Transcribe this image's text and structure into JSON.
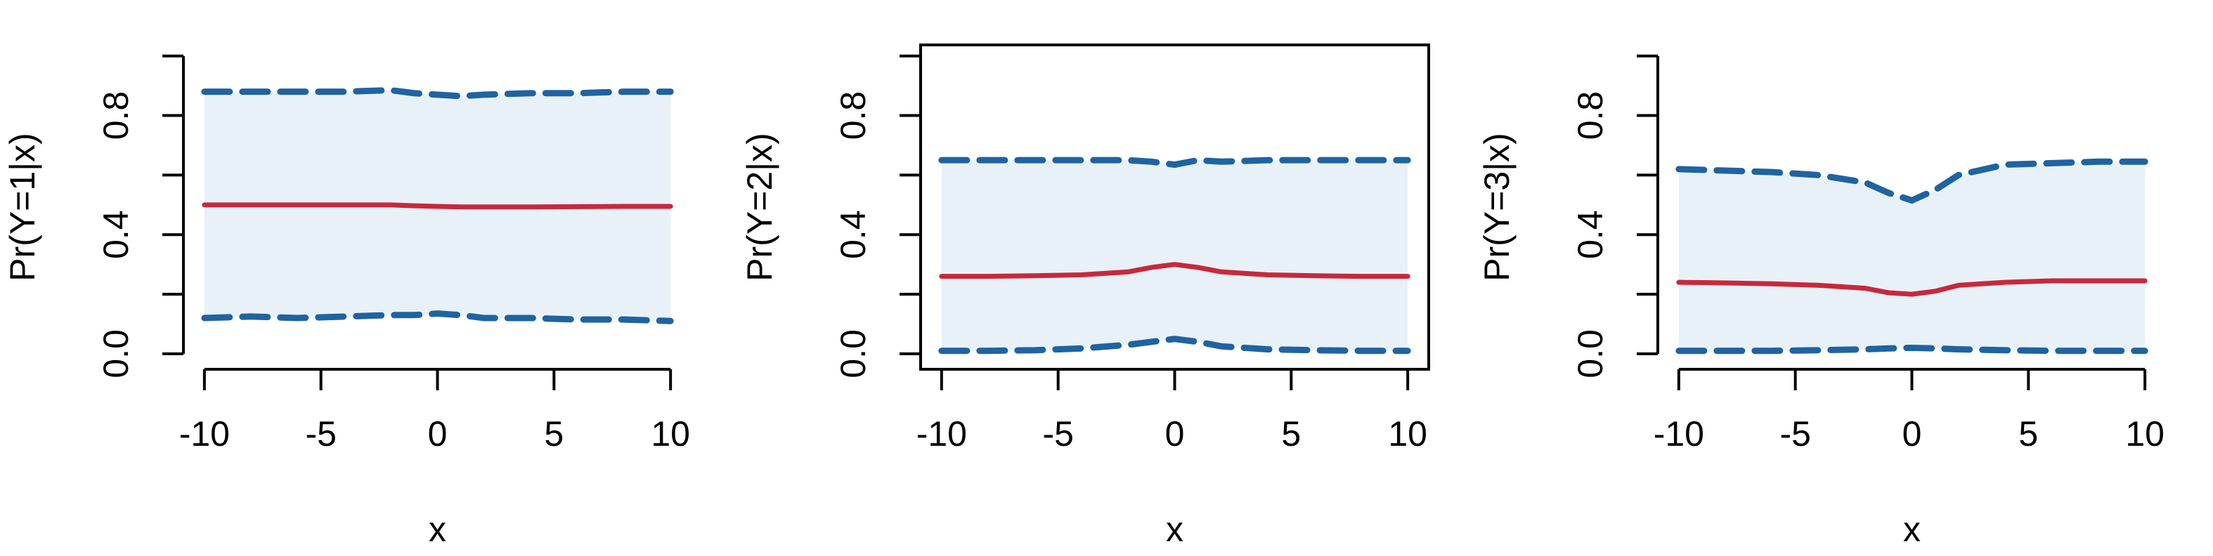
{
  "chart_data": [
    {
      "type": "line",
      "ylabel": "Pr(Y=1|x)",
      "xlabel": "x",
      "box": false,
      "fill_color": "#e8f1f8",
      "x": [
        -10,
        -8,
        -6,
        -4,
        -2,
        -1,
        0,
        1,
        2,
        4,
        6,
        8,
        10
      ],
      "series": [
        {
          "color": "#1f63a0",
          "dashed": true,
          "values": [
            0.88,
            0.88,
            0.88,
            0.88,
            0.885,
            0.875,
            0.87,
            0.865,
            0.87,
            0.875,
            0.875,
            0.88,
            0.88
          ]
        },
        {
          "color": "#1f63a0",
          "dashed": true,
          "values": [
            0.12,
            0.125,
            0.12,
            0.125,
            0.13,
            0.13,
            0.135,
            0.13,
            0.12,
            0.12,
            0.115,
            0.115,
            0.11
          ]
        },
        {
          "color": "#c8283c",
          "dashed": false,
          "values": [
            0.5,
            0.5,
            0.5,
            0.5,
            0.5,
            0.497,
            0.495,
            0.493,
            0.493,
            0.493,
            0.494,
            0.495,
            0.495
          ]
        }
      ],
      "xlim": [
        -10.9,
        10.9
      ],
      "ylim": [
        -0.052,
        1.037
      ],
      "xticks": [
        -10,
        -5,
        0,
        5,
        10
      ],
      "yticks": [
        {
          "value": 0,
          "label": "0.0"
        },
        0.4,
        0.8
      ],
      "minor_yticks": [
        0.2,
        0.6,
        1
      ]
    },
    {
      "type": "line",
      "ylabel": "Pr(Y=2|x)",
      "xlabel": "x",
      "box": true,
      "fill_color": "#e8f1f8",
      "x": [
        -10,
        -8,
        -6,
        -4,
        -2,
        -1,
        0,
        1,
        2,
        4,
        6,
        8,
        10
      ],
      "series": [
        {
          "color": "#1f63a0",
          "dashed": true,
          "values": [
            0.65,
            0.65,
            0.65,
            0.65,
            0.65,
            0.645,
            0.635,
            0.65,
            0.645,
            0.65,
            0.65,
            0.65,
            0.65
          ]
        },
        {
          "color": "#1f63a0",
          "dashed": true,
          "values": [
            0.01,
            0.01,
            0.012,
            0.018,
            0.03,
            0.04,
            0.05,
            0.04,
            0.025,
            0.015,
            0.012,
            0.01,
            0.01
          ]
        },
        {
          "color": "#c8283c",
          "dashed": false,
          "values": [
            0.26,
            0.26,
            0.262,
            0.265,
            0.275,
            0.29,
            0.3,
            0.29,
            0.275,
            0.265,
            0.262,
            0.26,
            0.26
          ]
        }
      ],
      "xlim": [
        -10.9,
        10.9
      ],
      "ylim": [
        -0.052,
        1.037
      ],
      "xticks": [
        -10,
        -5,
        0,
        5,
        10
      ],
      "yticks": [
        {
          "value": 0,
          "label": "0.0"
        },
        0.4,
        0.8
      ],
      "minor_yticks": [
        0.2,
        0.6,
        1
      ]
    },
    {
      "type": "line",
      "ylabel": "Pr(Y=3|x)",
      "xlabel": "x",
      "box": false,
      "fill_color": "#e8f1f8",
      "x": [
        -10,
        -8,
        -6,
        -4,
        -2,
        -1,
        0,
        1,
        2,
        4,
        6,
        8,
        10
      ],
      "series": [
        {
          "color": "#1f63a0",
          "dashed": true,
          "values": [
            0.62,
            0.615,
            0.61,
            0.6,
            0.575,
            0.54,
            0.515,
            0.55,
            0.6,
            0.635,
            0.64,
            0.645,
            0.645
          ]
        },
        {
          "color": "#1f63a0",
          "dashed": true,
          "values": [
            0.01,
            0.01,
            0.01,
            0.012,
            0.015,
            0.018,
            0.02,
            0.018,
            0.015,
            0.012,
            0.01,
            0.01,
            0.01
          ]
        },
        {
          "color": "#c8283c",
          "dashed": false,
          "values": [
            0.24,
            0.238,
            0.235,
            0.23,
            0.22,
            0.205,
            0.2,
            0.21,
            0.23,
            0.24,
            0.245,
            0.245,
            0.245
          ]
        }
      ],
      "xlim": [
        -10.9,
        10.9
      ],
      "ylim": [
        -0.052,
        1.037
      ],
      "xticks": [
        -10,
        -5,
        0,
        5,
        10
      ],
      "yticks": [
        {
          "value": 0,
          "label": "0.0"
        },
        0.4,
        0.8
      ],
      "minor_yticks": [
        0.2,
        0.6,
        1
      ]
    }
  ]
}
